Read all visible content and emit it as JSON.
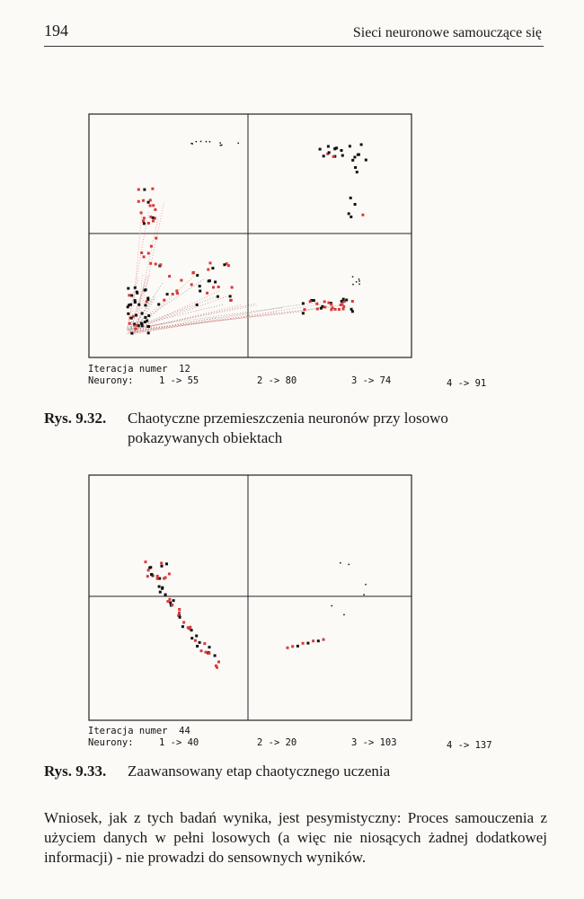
{
  "header": {
    "page_number": "194",
    "running_title": "Sieci neuronowe samouczące się"
  },
  "figures": [
    {
      "status_line_1": "Iteracja numer  12",
      "neurons_label": "Neurony:",
      "neurons": [
        "1 -> 55",
        "2 -> 80",
        "3 -> 74",
        "4 -> 91"
      ],
      "caption_label": "Rys. 9.32.",
      "caption_text": "Chaotyczne przemieszczenia neuronów przy losowo pokazywanych obiektach"
    },
    {
      "status_line_1": "Iteracja numer  44",
      "neurons_label": "Neurony:",
      "neurons": [
        "1 -> 40",
        "2 -> 20",
        "3 -> 103",
        "4 -> 137"
      ],
      "caption_label": "Rys. 9.33.",
      "caption_text": "Zaawansowany etap chaotycznego uczenia"
    }
  ],
  "conclusion": "Wniosek, jak z tych badań wynika, jest pesymistyczny: Proces samouczenia z użyciem danych w pełni losowych (a więc nie niosących żadnej dodatkowej informacji) - nie prowadzi do sensownych wyników.",
  "colors": {
    "ink": "#1a1a1a",
    "point_red": "#d83a3a",
    "point_black": "#111111",
    "trace_red": "#e07070",
    "trace_gray": "#777777"
  }
}
